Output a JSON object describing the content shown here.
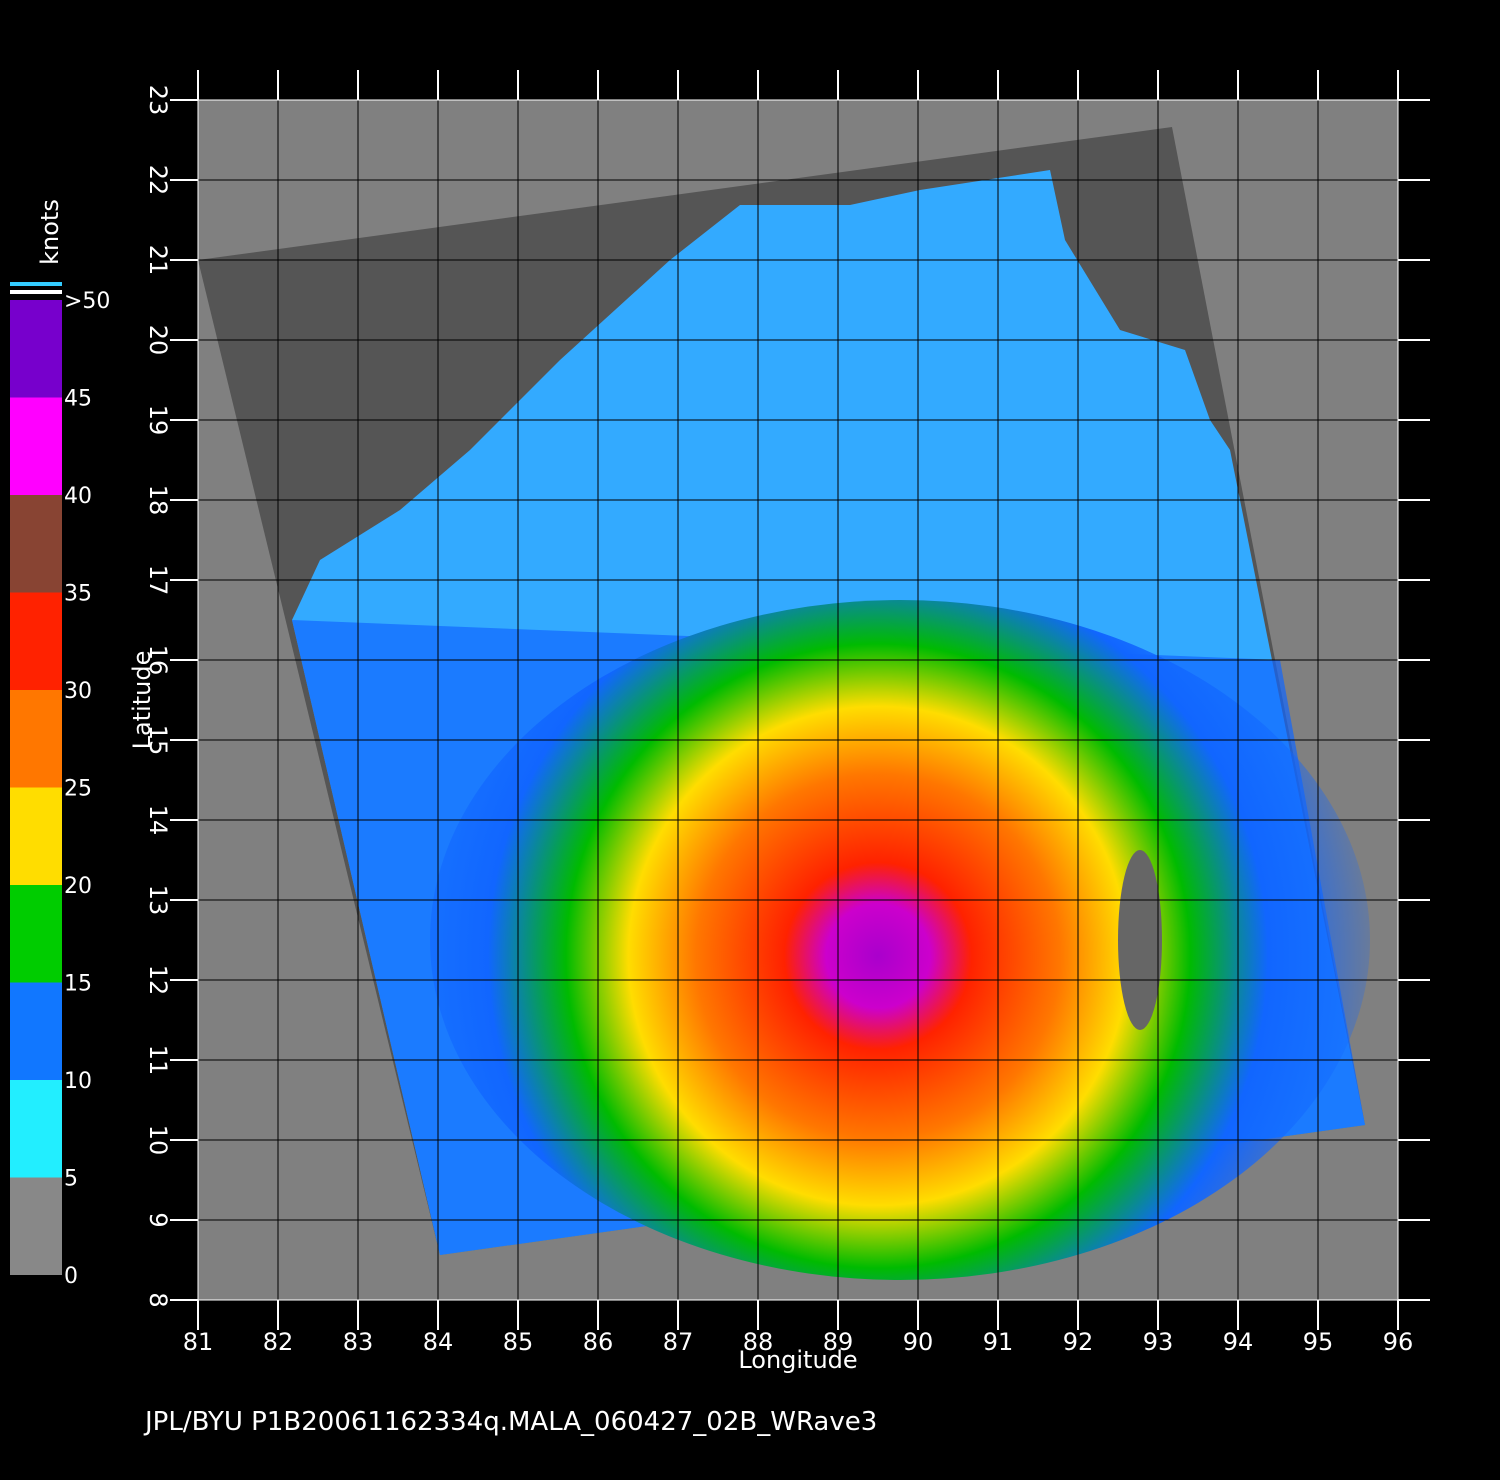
{
  "map": {
    "xlabel": "Longitude",
    "ylabel": "Latitude",
    "xlim": [
      81,
      96
    ],
    "ylim": [
      8,
      23
    ],
    "xticks": [
      81,
      82,
      83,
      84,
      85,
      86,
      87,
      88,
      89,
      90,
      91,
      92,
      93,
      94,
      95,
      96
    ],
    "yticks": [
      8,
      9,
      10,
      11,
      12,
      13,
      14,
      15,
      16,
      17,
      18,
      19,
      20,
      21,
      22,
      23
    ]
  },
  "colorbar": {
    "title": "knots",
    "ticks": [
      0,
      5,
      10,
      15,
      20,
      25,
      30,
      35,
      40,
      45,
      {
        "value": 50,
        "label": ">50"
      }
    ],
    "colors": [
      "#888888",
      "#22eeff",
      "#1177ff",
      "#00cc00",
      "#ffdd00",
      "#ff7700",
      "#ff2200",
      "#884433",
      "#ff00ff",
      "#7700cc"
    ]
  },
  "footer": "JPL/BYU  P1B20061162334q.MALA_060427_02B_WRave3"
}
